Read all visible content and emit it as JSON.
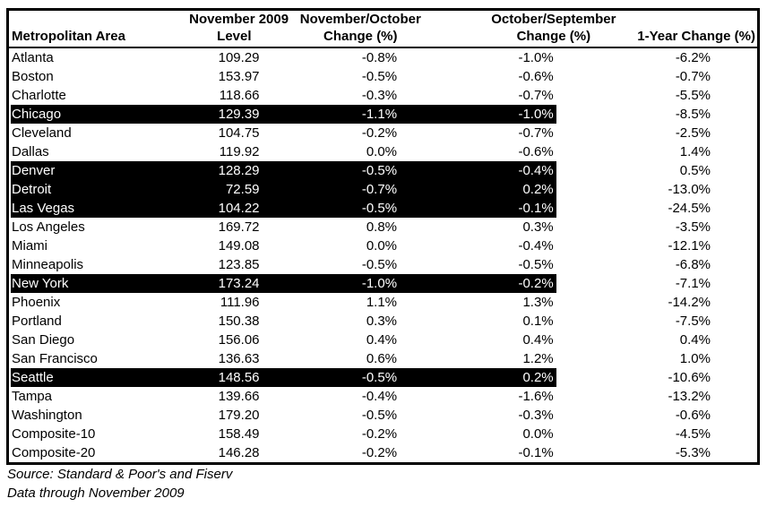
{
  "table": {
    "header": {
      "col1_line2": "Metropolitan Area",
      "col2_line1": "November 2009",
      "col2_line2": "Level",
      "col3_line1": "November/October",
      "col3_line2": "Change (%)",
      "col4_line1": "October/September",
      "col4_line2": "Change (%)",
      "col5_line2": "1-Year Change (%)"
    },
    "rows": [
      {
        "area": "Atlanta",
        "level": "109.29",
        "mom": "-0.8%",
        "prev": "-1.0%",
        "yoy": "-6.2%",
        "highlight": false
      },
      {
        "area": "Boston",
        "level": "153.97",
        "mom": "-0.5%",
        "prev": "-0.6%",
        "yoy": "-0.7%",
        "highlight": false
      },
      {
        "area": "Charlotte",
        "level": "118.66",
        "mom": "-0.3%",
        "prev": "-0.7%",
        "yoy": "-5.5%",
        "highlight": false
      },
      {
        "area": "Chicago",
        "level": "129.39",
        "mom": "-1.1%",
        "prev": "-1.0%",
        "yoy": "-8.5%",
        "highlight": true
      },
      {
        "area": "Cleveland",
        "level": "104.75",
        "mom": "-0.2%",
        "prev": "-0.7%",
        "yoy": "-2.5%",
        "highlight": false
      },
      {
        "area": "Dallas",
        "level": "119.92",
        "mom": "0.0%",
        "prev": "-0.6%",
        "yoy": "1.4%",
        "highlight": false
      },
      {
        "area": "Denver",
        "level": "128.29",
        "mom": "-0.5%",
        "prev": "-0.4%",
        "yoy": "0.5%",
        "highlight": true
      },
      {
        "area": "Detroit",
        "level": "72.59",
        "mom": "-0.7%",
        "prev": "0.2%",
        "yoy": "-13.0%",
        "highlight": true
      },
      {
        "area": "Las Vegas",
        "level": "104.22",
        "mom": "-0.5%",
        "prev": "-0.1%",
        "yoy": "-24.5%",
        "highlight": true
      },
      {
        "area": "Los Angeles",
        "level": "169.72",
        "mom": "0.8%",
        "prev": "0.3%",
        "yoy": "-3.5%",
        "highlight": false
      },
      {
        "area": "Miami",
        "level": "149.08",
        "mom": "0.0%",
        "prev": "-0.4%",
        "yoy": "-12.1%",
        "highlight": false
      },
      {
        "area": "Minneapolis",
        "level": "123.85",
        "mom": "-0.5%",
        "prev": "-0.5%",
        "yoy": "-6.8%",
        "highlight": false
      },
      {
        "area": "New York",
        "level": "173.24",
        "mom": "-1.0%",
        "prev": "-0.2%",
        "yoy": "-7.1%",
        "highlight": true
      },
      {
        "area": "Phoenix",
        "level": "111.96",
        "mom": "1.1%",
        "prev": "1.3%",
        "yoy": "-14.2%",
        "highlight": false
      },
      {
        "area": "Portland",
        "level": "150.38",
        "mom": "0.3%",
        "prev": "0.1%",
        "yoy": "-7.5%",
        "highlight": false
      },
      {
        "area": "San Diego",
        "level": "156.06",
        "mom": "0.4%",
        "prev": "0.4%",
        "yoy": "0.4%",
        "highlight": false
      },
      {
        "area": "San Francisco",
        "level": "136.63",
        "mom": "0.6%",
        "prev": "1.2%",
        "yoy": "1.0%",
        "highlight": false
      },
      {
        "area": "Seattle",
        "level": "148.56",
        "mom": "-0.5%",
        "prev": "0.2%",
        "yoy": "-10.6%",
        "highlight": true
      },
      {
        "area": "Tampa",
        "level": "139.66",
        "mom": "-0.4%",
        "prev": "-1.6%",
        "yoy": "-13.2%",
        "highlight": false
      },
      {
        "area": "Washington",
        "level": "179.20",
        "mom": "-0.5%",
        "prev": "-0.3%",
        "yoy": "-0.6%",
        "highlight": false
      },
      {
        "area": "Composite-10",
        "level": "158.49",
        "mom": "-0.2%",
        "prev": "0.0%",
        "yoy": "-4.5%",
        "highlight": false
      },
      {
        "area": "Composite-20",
        "level": "146.28",
        "mom": "-0.2%",
        "prev": "-0.1%",
        "yoy": "-5.3%",
        "highlight": false
      }
    ]
  },
  "footer": {
    "source": "Source: Standard & Poor's and Fiserv",
    "data_through": "Data through November 2009"
  },
  "colors": {
    "text": "#000000",
    "background": "#ffffff",
    "highlight_bg": "#000000",
    "highlight_text": "#ffffff"
  }
}
